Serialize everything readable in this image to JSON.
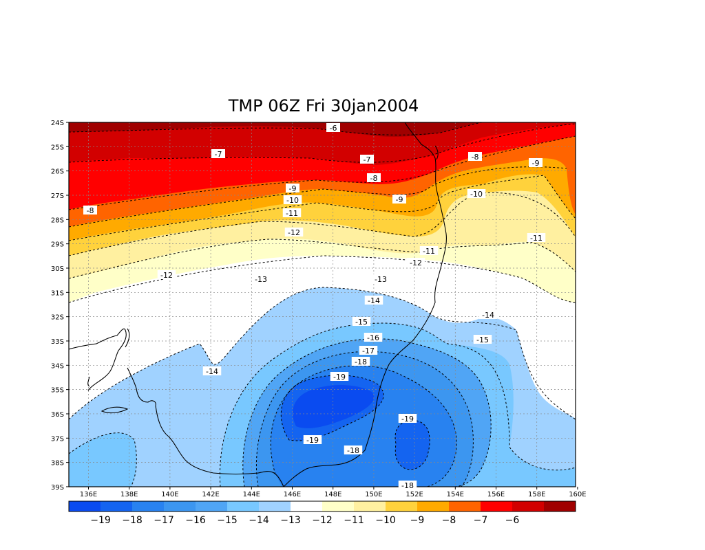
{
  "title": "TMP 06Z Fri 30jan2004",
  "y_ticks": [
    "24S",
    "25S",
    "26S",
    "27S",
    "28S",
    "29S",
    "30S",
    "31S",
    "32S",
    "33S",
    "34S",
    "35S",
    "36S",
    "37S",
    "38S",
    "39S"
  ],
  "x_ticks": [
    "136E",
    "138E",
    "140E",
    "142E",
    "144E",
    "146E",
    "148E",
    "150E",
    "152E",
    "154E",
    "156E",
    "158E",
    "160E"
  ],
  "colors": {
    "m20": "#0a4bf0",
    "m19": "#1464f0",
    "m18": "#2882f0",
    "m17": "#3c96f0",
    "m16": "#50a5f5",
    "m15": "#78c8ff",
    "m14": "#a0d2ff",
    "m13": "#ffffff",
    "m12": "#ffffc8",
    "m11": "#fff0a0",
    "m10": "#ffd23c",
    "m9": "#ffaa00",
    "m8": "#ff6400",
    "m7": "#ff0000",
    "m6": "#d20000",
    "m5": "#a00000"
  },
  "colorbar": {
    "labels": [
      "−19",
      "−18",
      "−17",
      "−16",
      "−15",
      "−14",
      "−13",
      "−12",
      "−11",
      "−10",
      "−9",
      "−8",
      "−7",
      "−6"
    ]
  },
  "contour_labels": [
    {
      "text": "-6"
    },
    {
      "text": "-7"
    },
    {
      "text": "-7"
    },
    {
      "text": "-8"
    },
    {
      "text": "-8"
    },
    {
      "text": "-8"
    },
    {
      "text": "-9"
    },
    {
      "text": "-9"
    },
    {
      "text": "-9"
    },
    {
      "text": "-10"
    },
    {
      "text": "-10"
    },
    {
      "text": "-11"
    },
    {
      "text": "-11"
    },
    {
      "text": "-11"
    },
    {
      "text": "-12"
    },
    {
      "text": "-12"
    },
    {
      "text": "-12"
    },
    {
      "text": "-13"
    },
    {
      "text": "-13"
    },
    {
      "text": "-14"
    },
    {
      "text": "-14"
    },
    {
      "text": "-14"
    },
    {
      "text": "-15"
    },
    {
      "text": "-15"
    },
    {
      "text": "-16"
    },
    {
      "text": "-17"
    },
    {
      "text": "-18"
    },
    {
      "text": "-18"
    },
    {
      "text": "-19"
    },
    {
      "text": "-19"
    },
    {
      "text": "-19"
    },
    {
      "text": "-18"
    }
  ]
}
